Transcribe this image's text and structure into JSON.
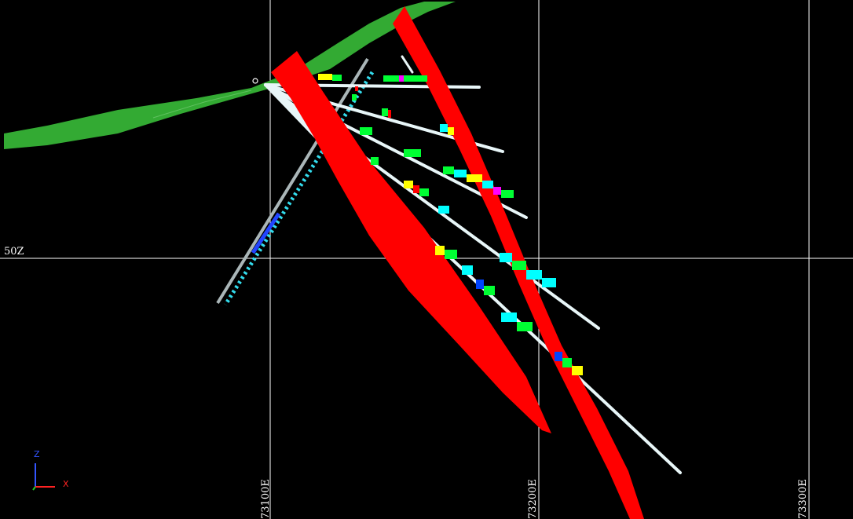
{
  "view": {
    "background": "#000000",
    "grid_color": "#ffffff",
    "elevation_label": "50Z",
    "easting_labels": [
      "73100E",
      "73200E",
      "73300E"
    ]
  },
  "surfaces": {
    "topography_color": "#33aa33",
    "fault_color": "#ff0000"
  },
  "drillholes": {
    "trace_color": "#cfe8ea",
    "interval_colors": [
      "#ffff00",
      "#00ff33",
      "#00ffff",
      "#ff00ff",
      "#0044ff",
      "#ff0000",
      "#ffffff"
    ]
  },
  "axes_triad": {
    "z_label": "Z",
    "x_label": "X",
    "z_color": "#3355ff",
    "x_color": "#ff2222",
    "y_color": "#22cc22"
  }
}
